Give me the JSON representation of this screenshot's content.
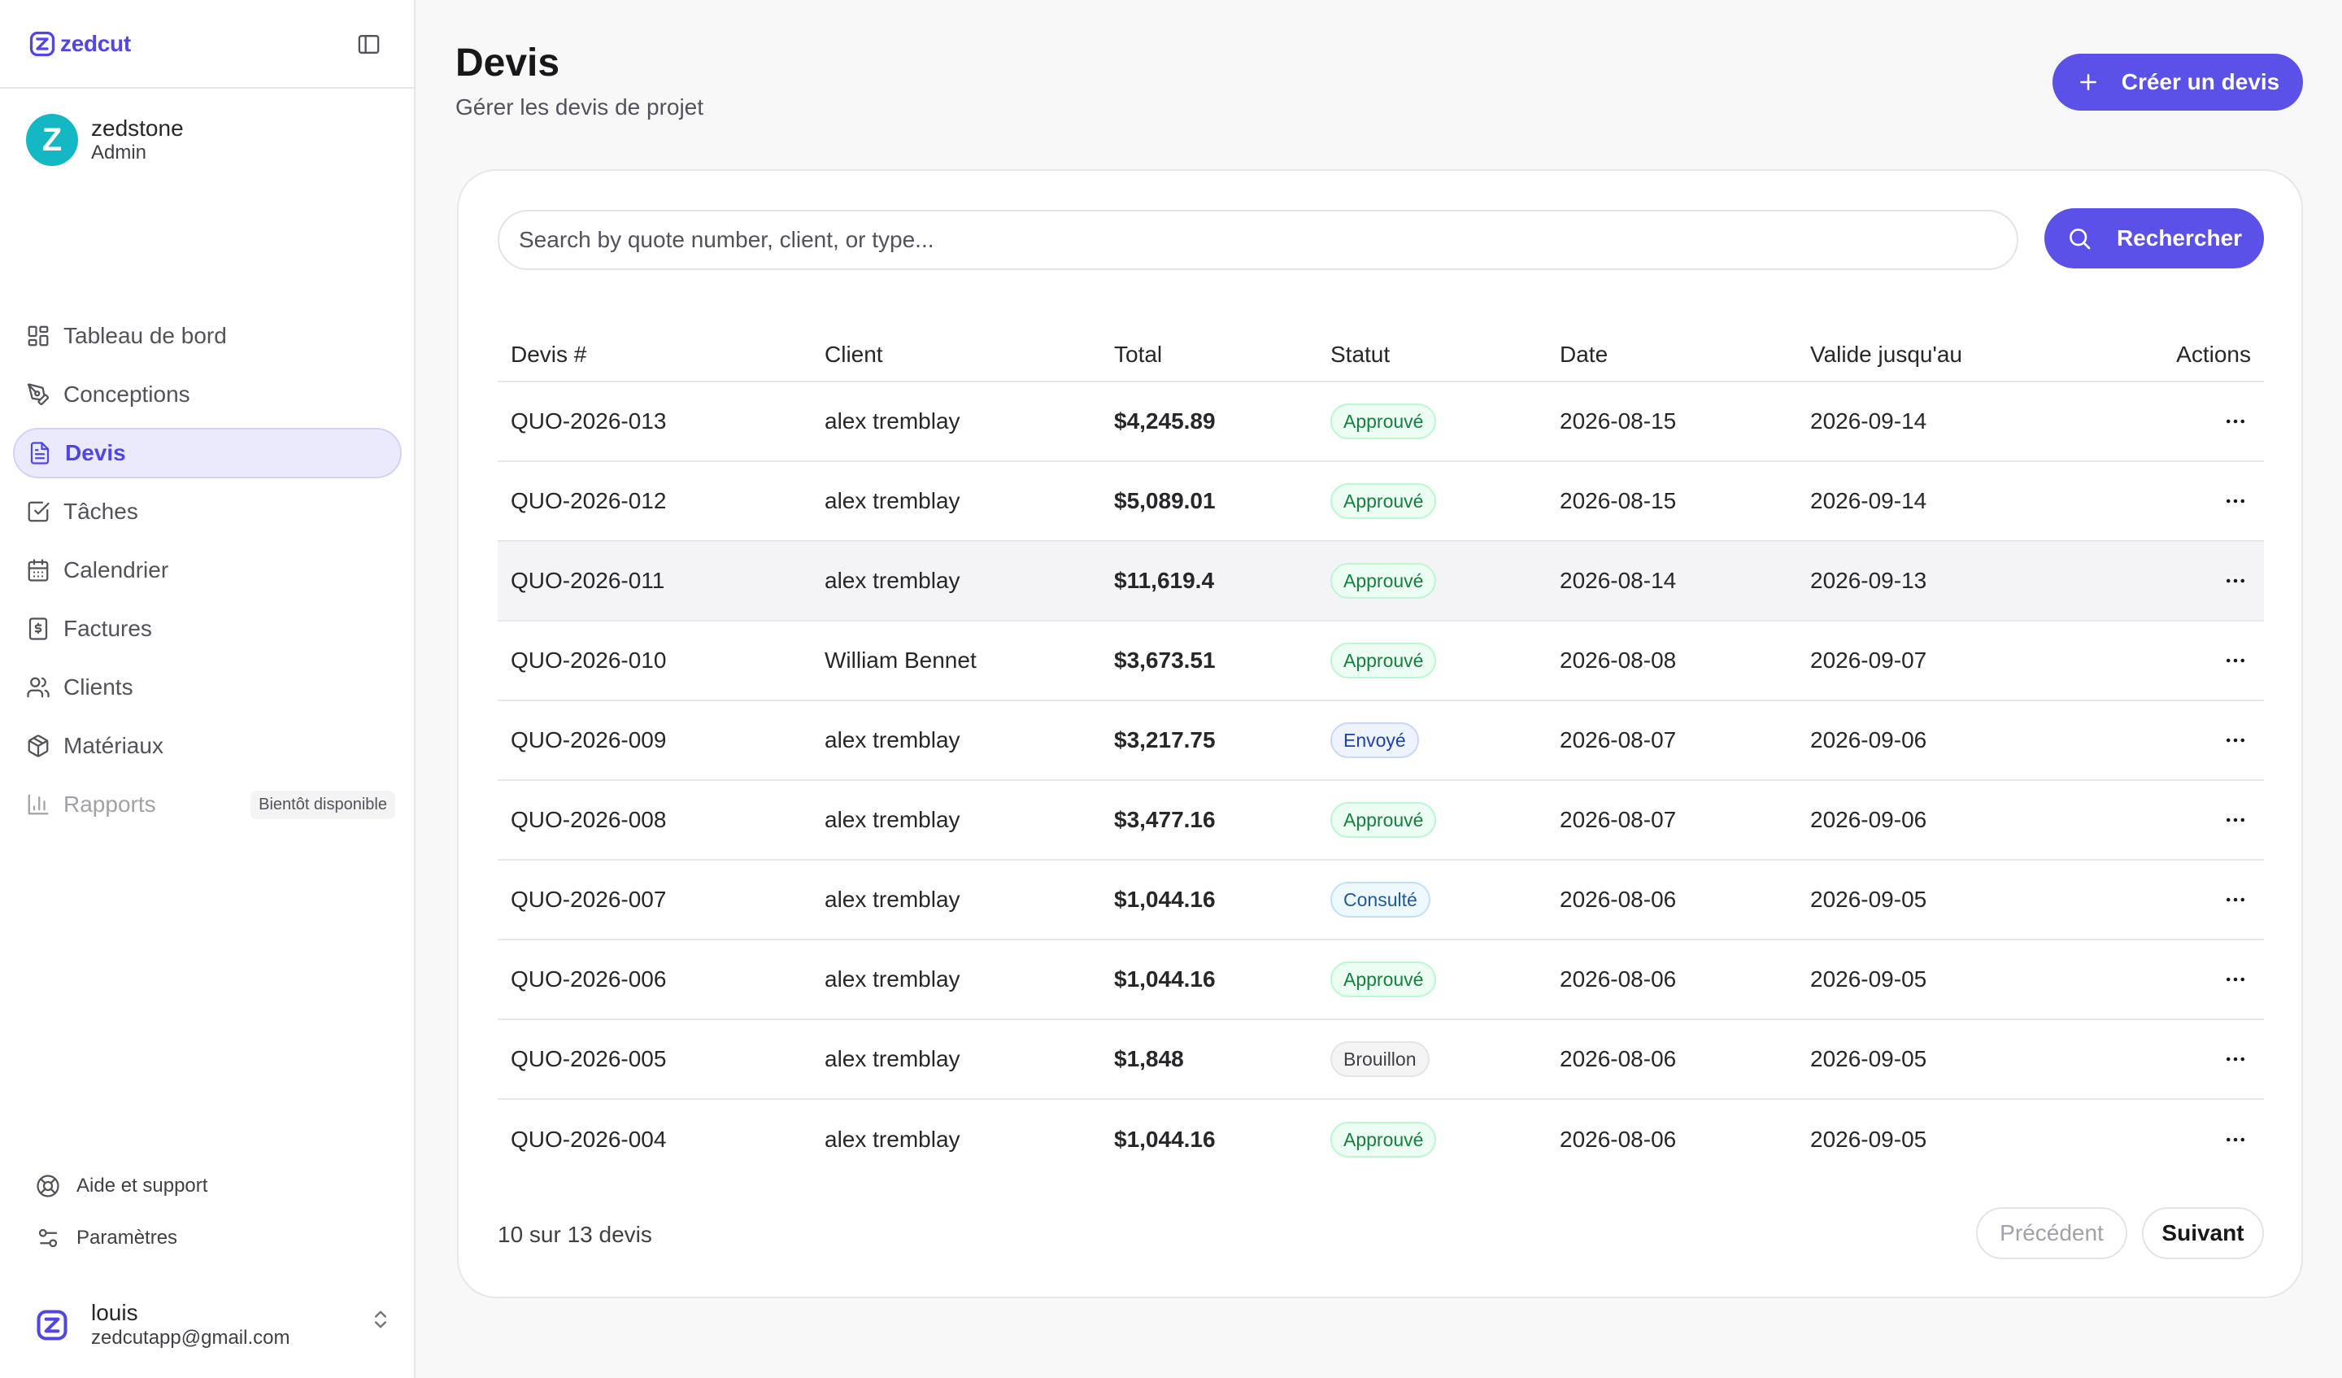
{
  "brand": {
    "name": "zedcut",
    "logo_icon": "zedcut-logo-icon"
  },
  "user": {
    "name": "zedstone",
    "role": "Admin",
    "avatar_letter": "Z",
    "avatar_color": "#14b8c4"
  },
  "nav": [
    {
      "label": "Tableau de bord",
      "icon": "dashboard-icon"
    },
    {
      "label": "Conceptions",
      "icon": "pen-tool-icon"
    },
    {
      "label": "Devis",
      "icon": "document-icon",
      "active": true
    },
    {
      "label": "Tâches",
      "icon": "checkbox-icon"
    },
    {
      "label": "Calendrier",
      "icon": "calendar-icon"
    },
    {
      "label": "Factures",
      "icon": "invoice-icon"
    },
    {
      "label": "Clients",
      "icon": "users-icon"
    },
    {
      "label": "Matériaux",
      "icon": "box-icon"
    },
    {
      "label": "Rapports",
      "icon": "bar-chart-icon",
      "disabled": true,
      "badge": "Bientôt disponible"
    }
  ],
  "footer_links": [
    {
      "label": "Aide et support",
      "icon": "lifebuoy-icon"
    },
    {
      "label": "Paramètres",
      "icon": "sliders-icon"
    }
  ],
  "account": {
    "name": "louis",
    "email": "zedcutapp@gmail.com"
  },
  "page": {
    "title": "Devis",
    "subtitle": "Gérer les devis de projet",
    "create_label": "Créer un devis"
  },
  "search": {
    "placeholder": "Search by quote number, client, or type...",
    "value": "",
    "button_label": "Rechercher"
  },
  "table": {
    "headers": [
      "Devis #",
      "Client",
      "Total",
      "Statut",
      "Date",
      "Valide jusqu'au",
      "Actions"
    ],
    "rows": [
      [
        "QUO-2026-013",
        "alex tremblay",
        "$4,245.89",
        "Approuvé",
        "2026-08-15",
        "2026-09-14"
      ],
      [
        "QUO-2026-012",
        "alex tremblay",
        "$5,089.01",
        "Approuvé",
        "2026-08-15",
        "2026-09-14"
      ],
      [
        "QUO-2026-011",
        "alex tremblay",
        "$11,619.4",
        "Approuvé",
        "2026-08-14",
        "2026-09-13"
      ],
      [
        "QUO-2026-010",
        "William Bennet",
        "$3,673.51",
        "Approuvé",
        "2026-08-08",
        "2026-09-07"
      ],
      [
        "QUO-2026-009",
        "alex tremblay",
        "$3,217.75",
        "Envoyé",
        "2026-08-07",
        "2026-09-06"
      ],
      [
        "QUO-2026-008",
        "alex tremblay",
        "$3,477.16",
        "Approuvé",
        "2026-08-07",
        "2026-09-06"
      ],
      [
        "QUO-2026-007",
        "alex tremblay",
        "$1,044.16",
        "Consulté",
        "2026-08-06",
        "2026-09-05"
      ],
      [
        "QUO-2026-006",
        "alex tremblay",
        "$1,044.16",
        "Approuvé",
        "2026-08-06",
        "2026-09-05"
      ],
      [
        "QUO-2026-005",
        "alex tremblay",
        "$1,848",
        "Brouillon",
        "2026-08-06",
        "2026-09-05"
      ],
      [
        "QUO-2026-004",
        "alex tremblay",
        "$1,044.16",
        "Approuvé",
        "2026-08-06",
        "2026-09-05"
      ]
    ]
  },
  "pagination": {
    "summary": "10 sur 13 devis",
    "prev_label": "Précédent",
    "next_label": "Suivant"
  },
  "colors": {
    "accent": "#5b50e8",
    "accent_text": "#4f46e5"
  }
}
